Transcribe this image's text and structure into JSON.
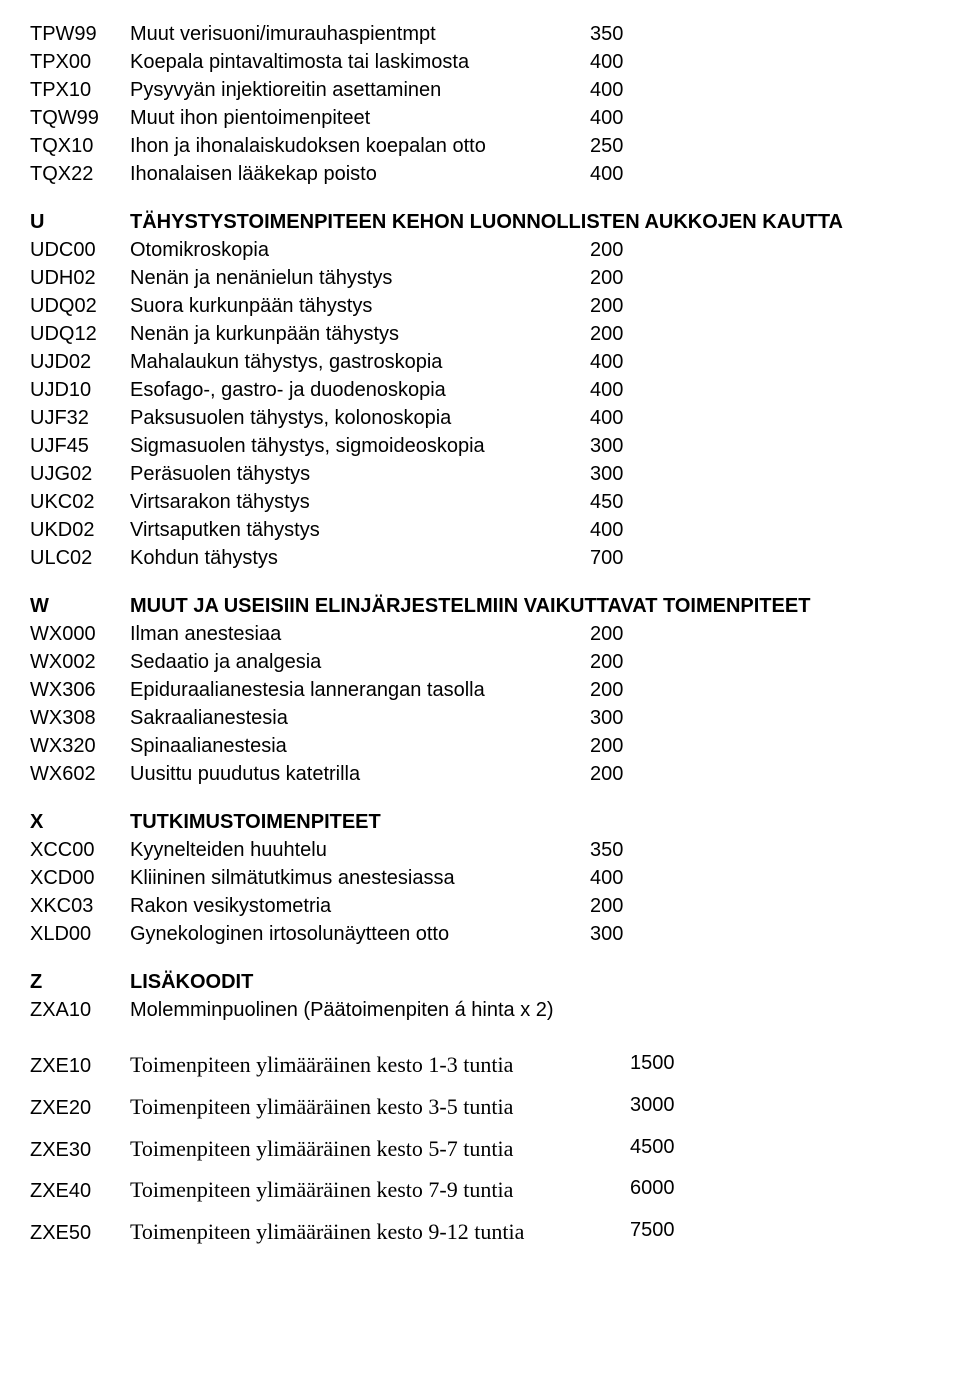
{
  "rows_top": [
    {
      "code": "TPW99",
      "desc": "Muut verisuoni/imurauhaspientmpt",
      "price": "350"
    },
    {
      "code": "TPX00",
      "desc": "Koepala pintavaltimosta tai laskimosta",
      "price": "400"
    },
    {
      "code": "TPX10",
      "desc": "Pysyvyän injektioreitin asettaminen",
      "price": "400"
    },
    {
      "code": "TQW99",
      "desc": "Muut ihon pientoimenpiteet",
      "price": "400"
    },
    {
      "code": "TQX10",
      "desc": "Ihon ja ihonalaiskudoksen koepalan otto",
      "price": "250"
    },
    {
      "code": "TQX22",
      "desc": "Ihonalaisen lääkekap poisto",
      "price": "400"
    }
  ],
  "section_u": {
    "code": "U",
    "title": "TÄHYSTYSTOIMENPITEEN KEHON LUONNOLLISTEN AUKKOJEN KAUTTA",
    "rows": [
      {
        "code": "UDC00",
        "desc": "Otomikroskopia",
        "price": "200"
      },
      {
        "code": "UDH02",
        "desc": "Nenän ja nenänielun tähystys",
        "price": "200"
      },
      {
        "code": "UDQ02",
        "desc": "Suora kurkunpään tähystys",
        "price": "200"
      },
      {
        "code": "UDQ12",
        "desc": "Nenän ja kurkunpään tähystys",
        "price": "200"
      },
      {
        "code": "UJD02",
        "desc": "Mahalaukun tähystys, gastroskopia",
        "price": "400"
      },
      {
        "code": "UJD10",
        "desc": "Esofago-, gastro- ja duodenoskopia",
        "price": "400"
      },
      {
        "code": "UJF32",
        "desc": "Paksusuolen tähystys, kolonoskopia",
        "price": "400"
      },
      {
        "code": "UJF45",
        "desc": "Sigmasuolen tähystys, sigmoideoskopia",
        "price": "300"
      },
      {
        "code": "UJG02",
        "desc": "Peräsuolen tähystys",
        "price": "300"
      },
      {
        "code": "UKC02",
        "desc": "Virtsarakon tähystys",
        "price": "450"
      },
      {
        "code": "UKD02",
        "desc": "Virtsaputken tähystys",
        "price": "400"
      },
      {
        "code": "ULC02",
        "desc": "Kohdun tähystys",
        "price": "700"
      }
    ]
  },
  "section_w": {
    "code": "W",
    "title": "MUUT JA USEISIIN ELINJÄRJESTELMIIN VAIKUTTAVAT TOIMENPITEET",
    "rows": [
      {
        "code": "WX000",
        "desc": "Ilman anestesiaa",
        "price": "200"
      },
      {
        "code": "WX002",
        "desc": "Sedaatio ja analgesia",
        "price": "200"
      },
      {
        "code": "WX306",
        "desc": "Epiduraalianestesia lannerangan tasolla",
        "price": "200"
      },
      {
        "code": "WX308",
        "desc": "Sakraalianestesia",
        "price": "300"
      },
      {
        "code": "WX320",
        "desc": "Spinaalianestesia",
        "price": "200"
      },
      {
        "code": "WX602",
        "desc": "Uusittu puudutus katetrilla",
        "price": "200"
      }
    ]
  },
  "section_x": {
    "code": "X",
    "title": "TUTKIMUSTOIMENPITEET",
    "rows": [
      {
        "code": "XCC00",
        "desc": "Kyynelteiden huuhtelu",
        "price": "350"
      },
      {
        "code": "XCD00",
        "desc": "Kliininen silmätutkimus anestesiassa",
        "price": "400"
      },
      {
        "code": "XKC03",
        "desc": "Rakon vesikystometria",
        "price": "200"
      },
      {
        "code": "XLD00",
        "desc": "Gynekologinen irtosolunäytteen otto",
        "price": "300"
      }
    ]
  },
  "section_z": {
    "code": "Z",
    "title": "LISÄKOODIT",
    "rows": [
      {
        "code": "ZXA10",
        "desc": "Molemminpuolinen  (Päätoimenpiten á hinta x 2)",
        "price": ""
      }
    ]
  },
  "zxe_rows": [
    {
      "code": "ZXE10",
      "desc": "Toimenpiteen ylimääräinen kesto 1-3 tuntia",
      "price": "1500"
    },
    {
      "code": "ZXE20",
      "desc": "Toimenpiteen ylimääräinen kesto 3-5 tuntia",
      "price": "3000"
    },
    {
      "code": "ZXE30",
      "desc": "Toimenpiteen ylimääräinen kesto 5-7 tuntia",
      "price": "4500"
    },
    {
      "code": "ZXE40",
      "desc": "Toimenpiteen ylimääräinen kesto 7-9 tuntia",
      "price": "6000"
    },
    {
      "code": "ZXE50",
      "desc": "Toimenpiteen ylimääräinen kesto 9-12 tuntia",
      "price": "7500"
    }
  ]
}
